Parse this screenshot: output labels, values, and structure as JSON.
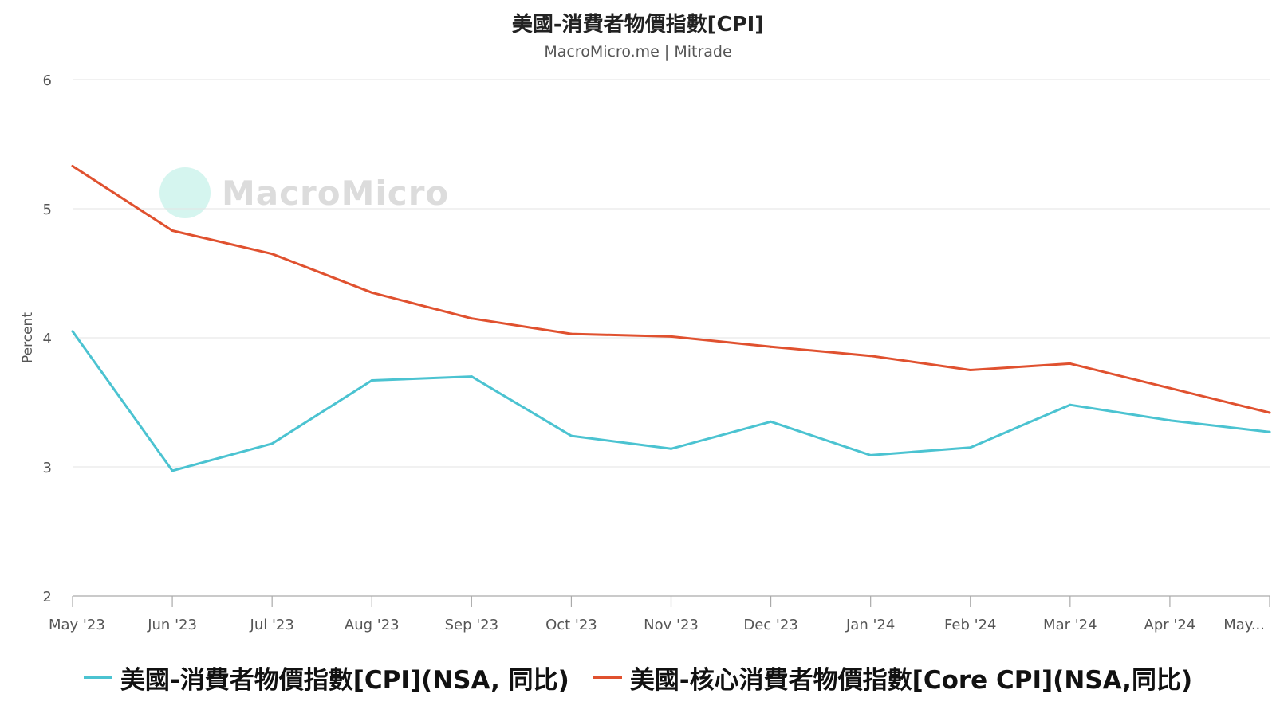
{
  "title": "美國-消費者物價指數[CPI]",
  "subtitle": "MacroMicro.me | Mitrade",
  "watermark": "MacroMicro",
  "chart_data": {
    "type": "line",
    "title": "美國-消費者物價指數[CPI]",
    "subtitle": "MacroMicro.me | Mitrade",
    "ylabel": "Percent",
    "xlabel": "",
    "ylim": [
      2,
      6
    ],
    "yticks": [
      2,
      3,
      4,
      5,
      6
    ],
    "grid": true,
    "legend_position": "bottom",
    "categories": [
      "May '23",
      "Jun '23",
      "Jul '23",
      "Aug '23",
      "Sep '23",
      "Oct '23",
      "Nov '23",
      "Dec '23",
      "Jan '24",
      "Feb '24",
      "Mar '24",
      "Apr '24",
      "May..."
    ],
    "series": [
      {
        "name": "美國-消費者物價指數[CPI](NSA, 同比)",
        "color": "#4bc3d1",
        "values": [
          4.05,
          2.97,
          3.18,
          3.67,
          3.7,
          3.24,
          3.14,
          3.35,
          3.09,
          3.15,
          3.48,
          3.36,
          3.27
        ]
      },
      {
        "name": "美國-核心消費者物價指數[Core CPI](NSA,同比)",
        "color": "#e0512f",
        "values": [
          5.33,
          4.83,
          4.65,
          4.35,
          4.15,
          4.03,
          4.01,
          3.93,
          3.86,
          3.75,
          3.8,
          3.61,
          3.42
        ]
      }
    ]
  }
}
